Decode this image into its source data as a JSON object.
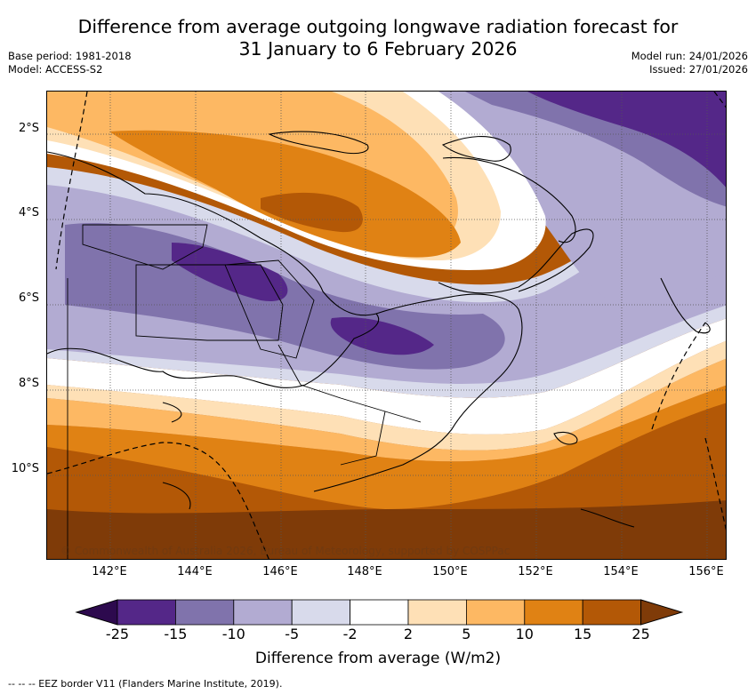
{
  "header": {
    "title_line1": "Difference from average outgoing longwave radiation forecast for",
    "title_line2": "31 January to 6 February 2026",
    "base_period": "Base period: 1981-2018",
    "model": "Model: ACCESS-S2",
    "model_run": "Model run: 24/01/2026",
    "issued": "Issued: 27/01/2026"
  },
  "map": {
    "region": "Papua New Guinea",
    "lat_labels": [
      "2°S",
      "4°S",
      "6°S",
      "8°S",
      "10°S"
    ],
    "lon_labels": [
      "142°E",
      "144°E",
      "146°E",
      "148°E",
      "150°E",
      "152°E",
      "154°E",
      "156°E"
    ],
    "copyright": "© Commonwealth of Australia 2026, Bureau of Meteorology, supported by COSPPac"
  },
  "colorbar": {
    "ticks": [
      "-25",
      "-15",
      "-10",
      "-5",
      "-2",
      "2",
      "5",
      "10",
      "15",
      "25"
    ],
    "colors": [
      "#2d0a4e",
      "#542788",
      "#8073ac",
      "#b2abd2",
      "#d8daeb",
      "#ffffff",
      "#fee0b6",
      "#fdb863",
      "#e08214",
      "#b35806",
      "#7f3b08"
    ],
    "label": "Difference from average (W/m2)"
  },
  "footnote": "--  --  -- EEZ border V11 (Flanders Marine Institute, 2019)."
}
